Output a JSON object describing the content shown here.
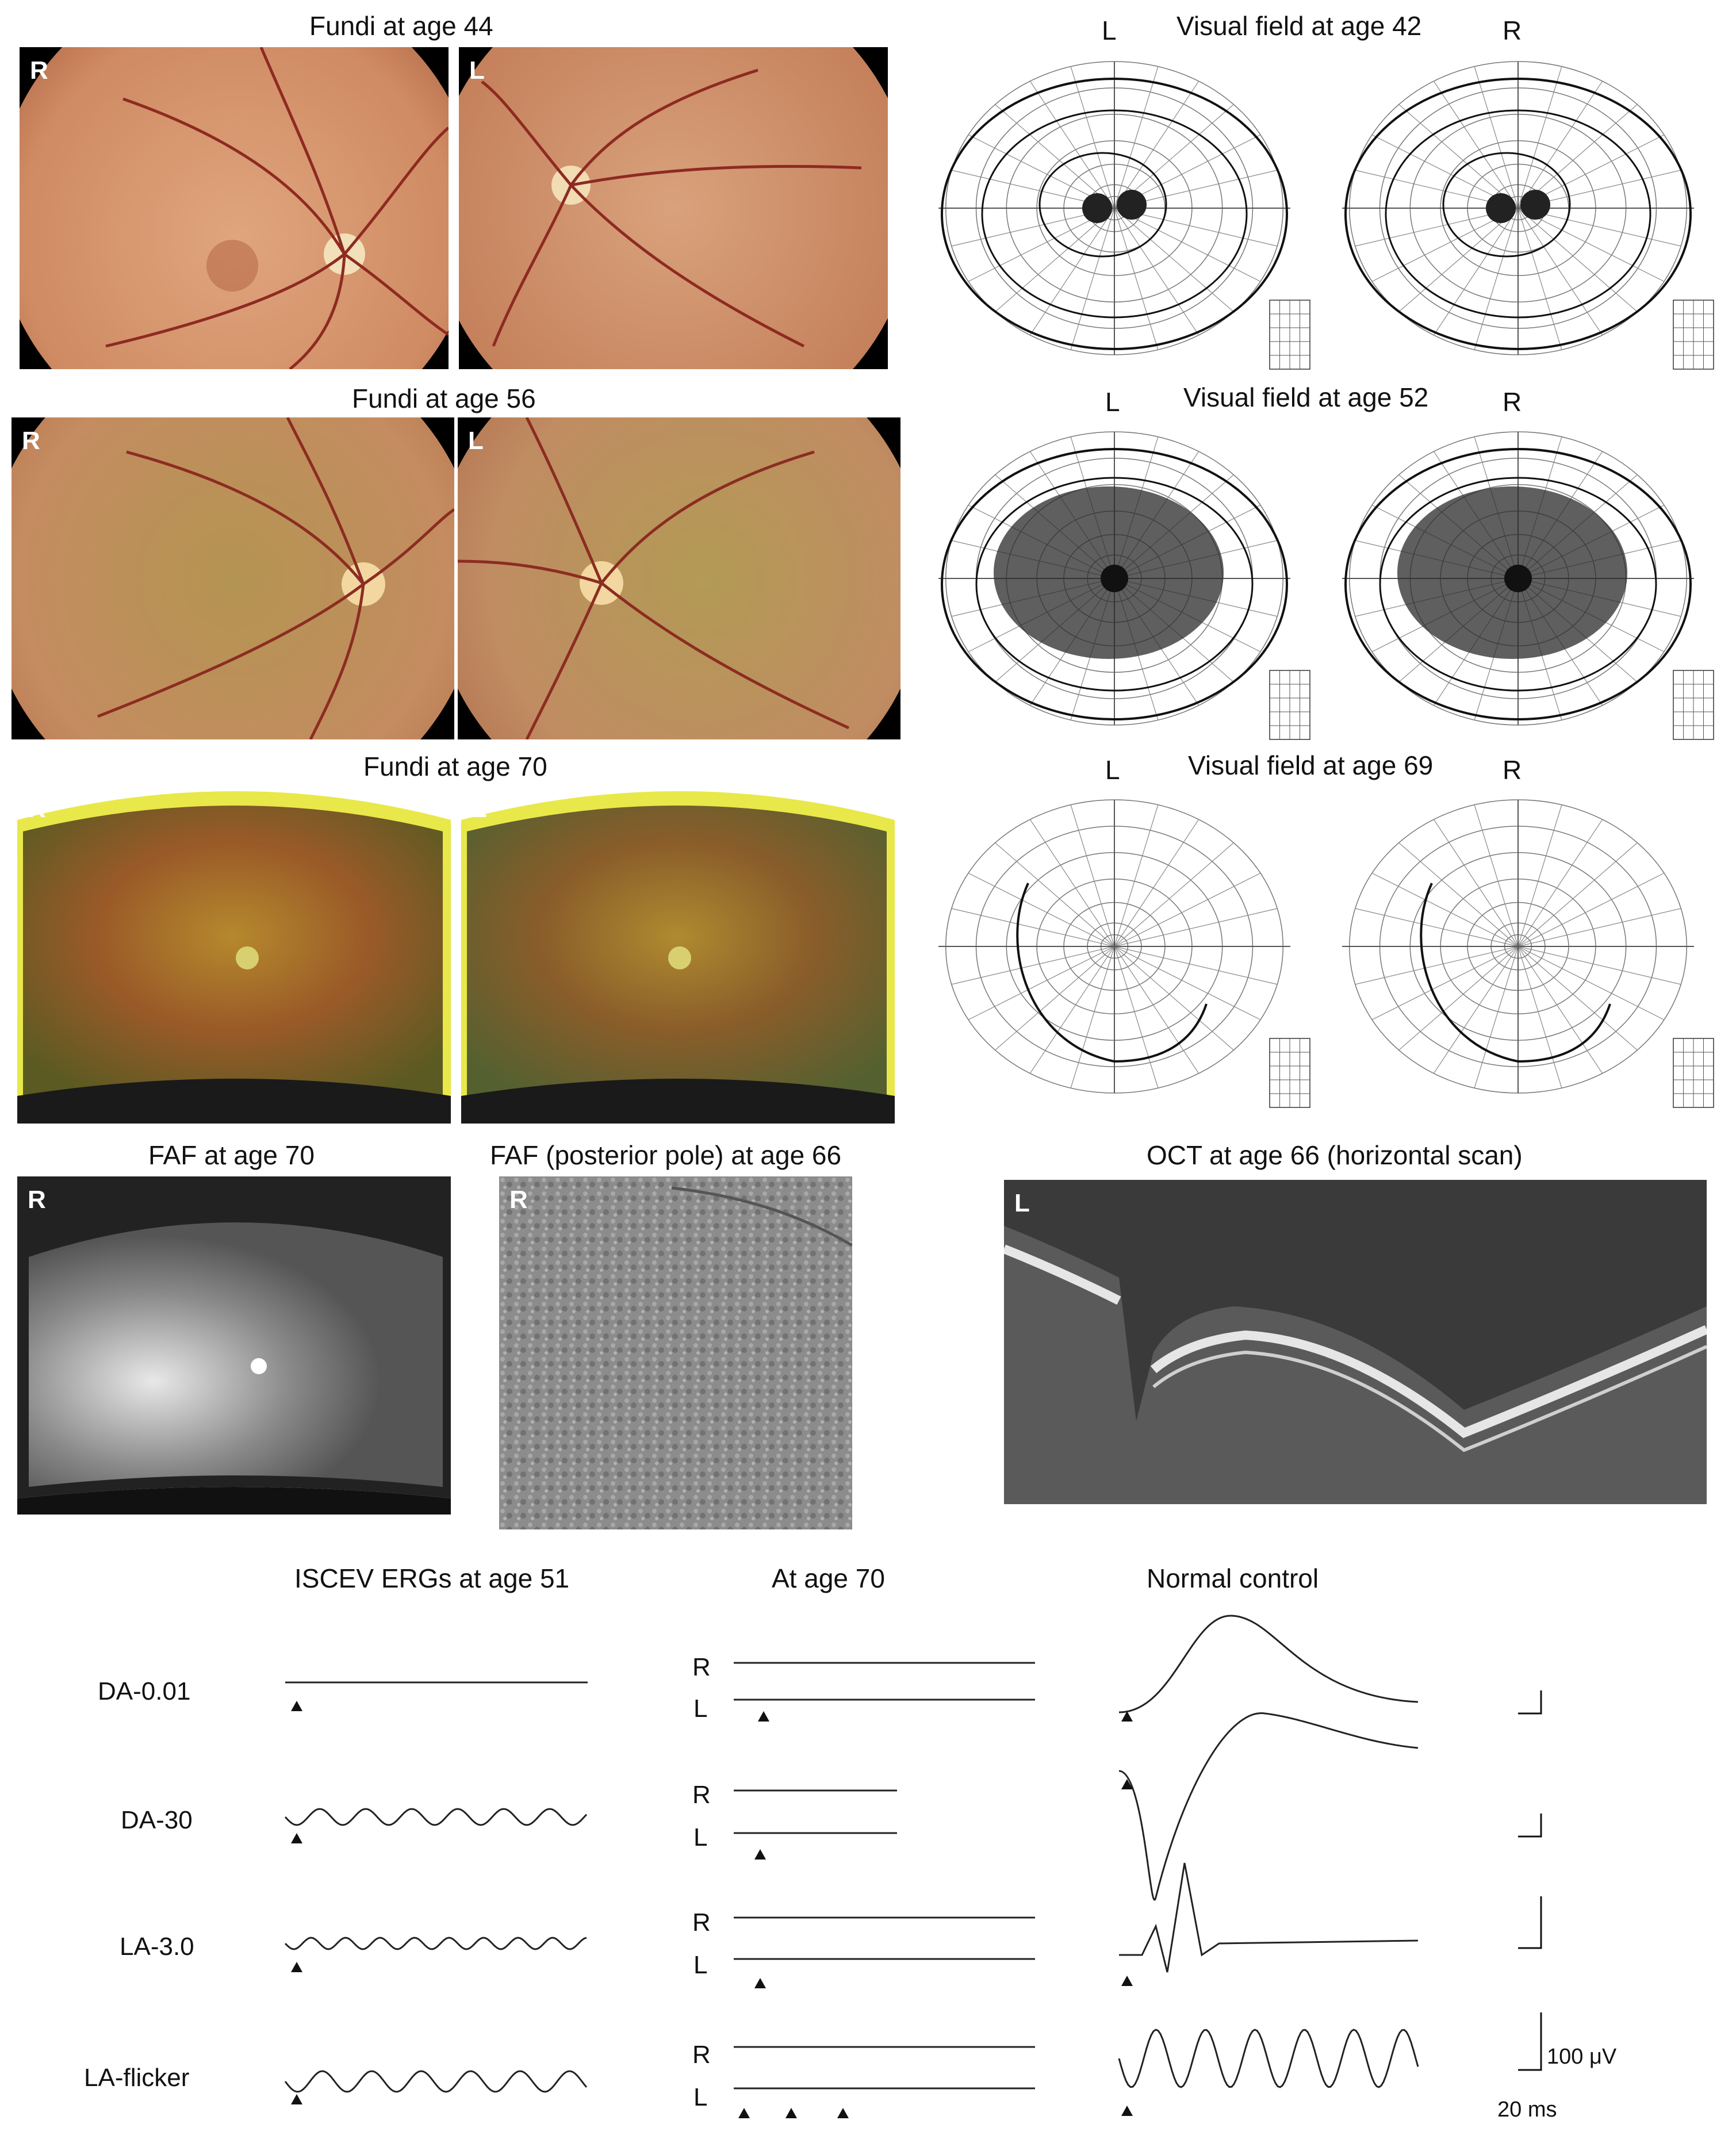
{
  "fundi": {
    "t44": "Fundi at age 44",
    "t56": "Fundi at age 56",
    "t70": "Fundi at age 70"
  },
  "vf": {
    "t42": "Visual field at age 42",
    "t52": "Visual field at age 52",
    "t69": "Visual field at age 69"
  },
  "faf": {
    "t70": "FAF at age 70",
    "t66": "FAF (posterior pole) at age 66"
  },
  "oct": {
    "t66": "OCT at age 66 (horizontal scan)"
  },
  "eye": {
    "R": "R",
    "L": "L"
  },
  "erg": {
    "col1": "ISCEV ERGs at age 51",
    "col2": "At age 70",
    "col3": "Normal control",
    "rows": [
      "DA-0.01",
      "DA-30",
      "LA-3.0",
      "LA-flicker"
    ],
    "scale_uv": "100 μV",
    "scale_ms": "20 ms"
  },
  "colors": {
    "fundus_bg": "#c98a62",
    "uwf_bg": "#8a6a25",
    "faf_bg": "#6a6a6a",
    "oct_bg": "#3a3a3a"
  }
}
